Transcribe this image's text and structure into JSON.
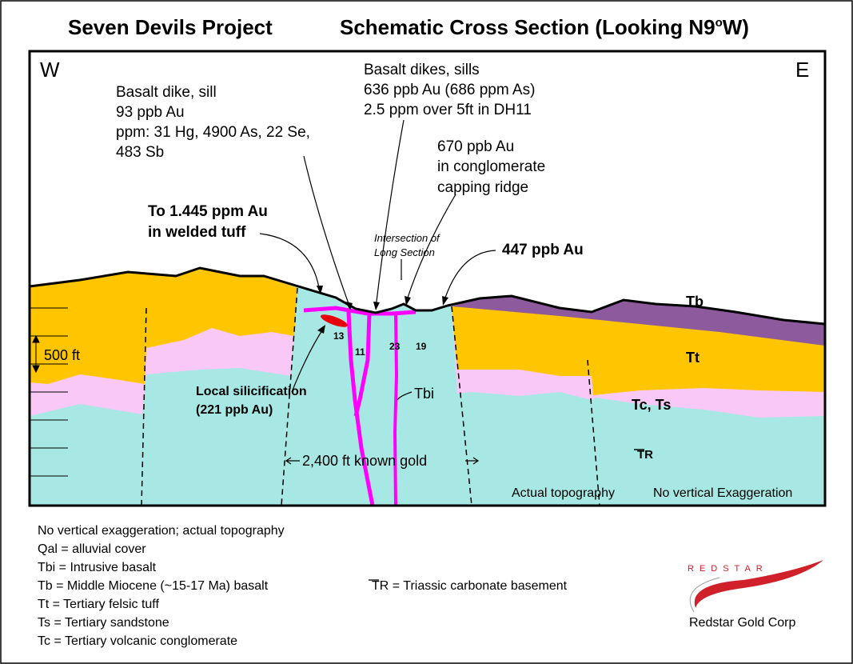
{
  "header": {
    "title_left": "Seven Devils Project",
    "title_right": {
      "text": "Schematic Cross Section (Looking N9",
      "sup": "o",
      "end": "W)"
    }
  },
  "section": {
    "west": "W",
    "east": "E",
    "scale": "500 ft",
    "annotations": {
      "basalt_dike": [
        "Basalt dike, sill",
        "93 ppb Au",
        "ppm: 31 Hg, 4900 As, 22 Se,",
        "483 Sb"
      ],
      "basalt_dikes": [
        "Basalt dikes, sills",
        "636 ppb Au (686 ppm As)",
        "2.5 ppm over 5ft in DH11"
      ],
      "conglomerate": [
        "670 ppb Au",
        "in conglomerate",
        "capping ridge"
      ],
      "welded_tuff": [
        "To 1.445 ppm Au",
        "in welded tuff"
      ],
      "intersection": [
        "Intersection of",
        "Long Section"
      ],
      "ridge": "447 ppb Au",
      "silicification": [
        "Local silicification",
        "(221 ppb Au)"
      ],
      "known_gold": "2,400 ft known gold",
      "topography": "Actual topography",
      "exaggeration": "No vertical Exaggeration"
    },
    "units": {
      "tb": "Tb",
      "tt": "Tt",
      "tcts": "Tc, Ts",
      "tbi": "Tbi",
      "tr": "TR"
    },
    "holes": [
      "13",
      "11",
      "23",
      "19"
    ]
  },
  "legend": [
    "No vertical exaggeration; actual topography",
    "Qal = alluvial cover",
    "Tbi = Intrusive basalt",
    "Tb = Middle Miocene (~15-17 Ma) basalt",
    "Tt  = Tertiary felsic tuff",
    "Ts = Tertiary sandstone",
    "Tc = Tertiary volcanic conglomerate"
  ],
  "triassic_legend": "TR = Triassic carbonate basement",
  "logo": {
    "mark": "REDSTAR",
    "name": "Redstar Gold Corp"
  }
}
